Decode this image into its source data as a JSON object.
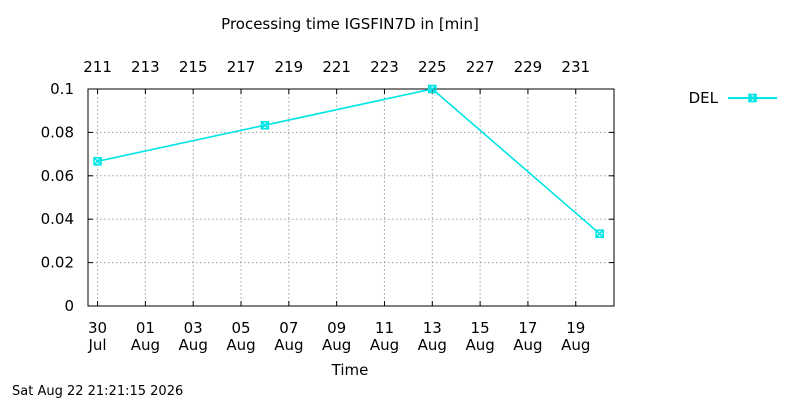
{
  "title": "Processing time IGSFIN7D in [min]",
  "timestamp": "Sat Aug 22 21:21:15 2026",
  "chart_data": {
    "type": "line",
    "title": "Processing time IGSFIN7D in [min]",
    "xlabel": "Time",
    "ylabel": "",
    "xlim": [
      210.6,
      232.6
    ],
    "ylim": [
      0,
      0.1
    ],
    "grid": true,
    "legend_position": "top-right (outside plot)",
    "y_ticks": [
      "0",
      "0.02",
      "0.04",
      "0.06",
      "0.08",
      "0.1"
    ],
    "y_tick_values": [
      0,
      0.02,
      0.04,
      0.06,
      0.08,
      0.1
    ],
    "x_ticks": [
      {
        "doy": 211,
        "day": "30",
        "month": "Jul"
      },
      {
        "doy": 213,
        "day": "01",
        "month": "Aug"
      },
      {
        "doy": 215,
        "day": "03",
        "month": "Aug"
      },
      {
        "doy": 217,
        "day": "05",
        "month": "Aug"
      },
      {
        "doy": 219,
        "day": "07",
        "month": "Aug"
      },
      {
        "doy": 221,
        "day": "09",
        "month": "Aug"
      },
      {
        "doy": 223,
        "day": "11",
        "month": "Aug"
      },
      {
        "doy": 225,
        "day": "13",
        "month": "Aug"
      },
      {
        "doy": 227,
        "day": "15",
        "month": "Aug"
      },
      {
        "doy": 229,
        "day": "17",
        "month": "Aug"
      },
      {
        "doy": 231,
        "day": "19",
        "month": "Aug"
      }
    ],
    "x2_label": "",
    "series": [
      {
        "name": "DEL",
        "color": "#00e5e5",
        "marker": "x-box",
        "points": [
          {
            "x": 211.0,
            "y": 0.0667
          },
          {
            "x": 218.0,
            "y": 0.0833
          },
          {
            "x": 225.0,
            "y": 0.1
          },
          {
            "x": 232.0,
            "y": 0.0333
          }
        ]
      }
    ]
  }
}
